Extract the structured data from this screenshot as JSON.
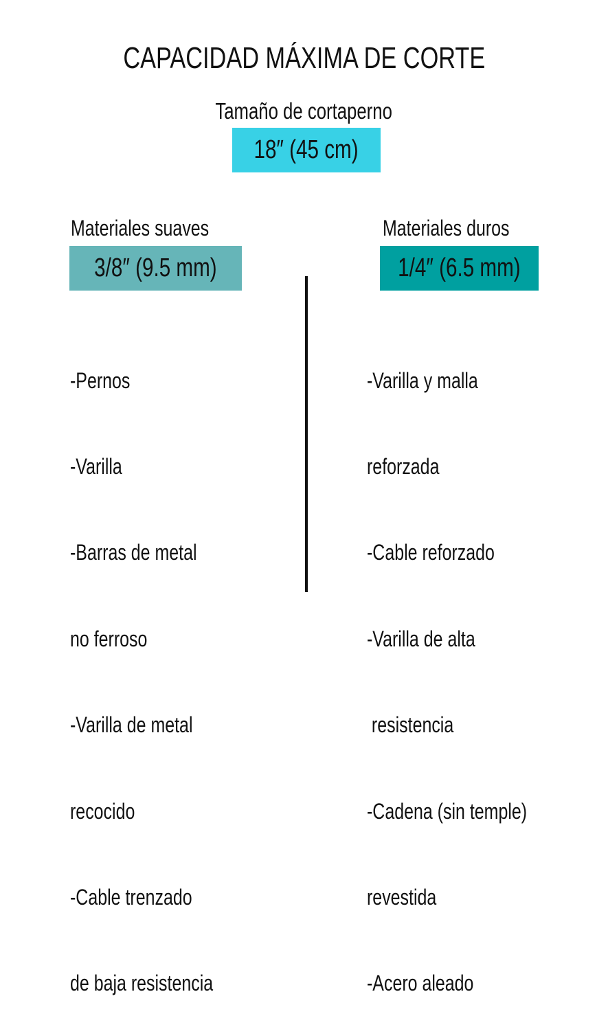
{
  "title": "CAPACIDAD MÁXIMA DE CORTE",
  "size_label": "Tamaño de cortaperno",
  "size_value": "18″ (45 cm)",
  "colors": {
    "size_box": "#38d1e6",
    "soft_box": "#66b5b8",
    "hard_box": "#00a0a0"
  },
  "soft": {
    "heading": "Materiales suaves",
    "value": "3/8″ (9.5 mm)",
    "lines": [
      "-Pernos",
      "-Varilla",
      "-Barras de metal",
      "no ferroso",
      "-Varilla de metal",
      "recocido",
      "-Cable trenzado",
      "de baja resistencia"
    ]
  },
  "hard": {
    "heading": "Materiales duros",
    "value": "1/4″ (6.5 mm)",
    "lines": [
      "-Varilla y malla",
      "reforzada",
      "-Cable reforzado",
      "-Varilla de alta",
      " resistencia",
      "-Cadena (sin temple)",
      "revestida",
      "-Acero aleado"
    ]
  }
}
